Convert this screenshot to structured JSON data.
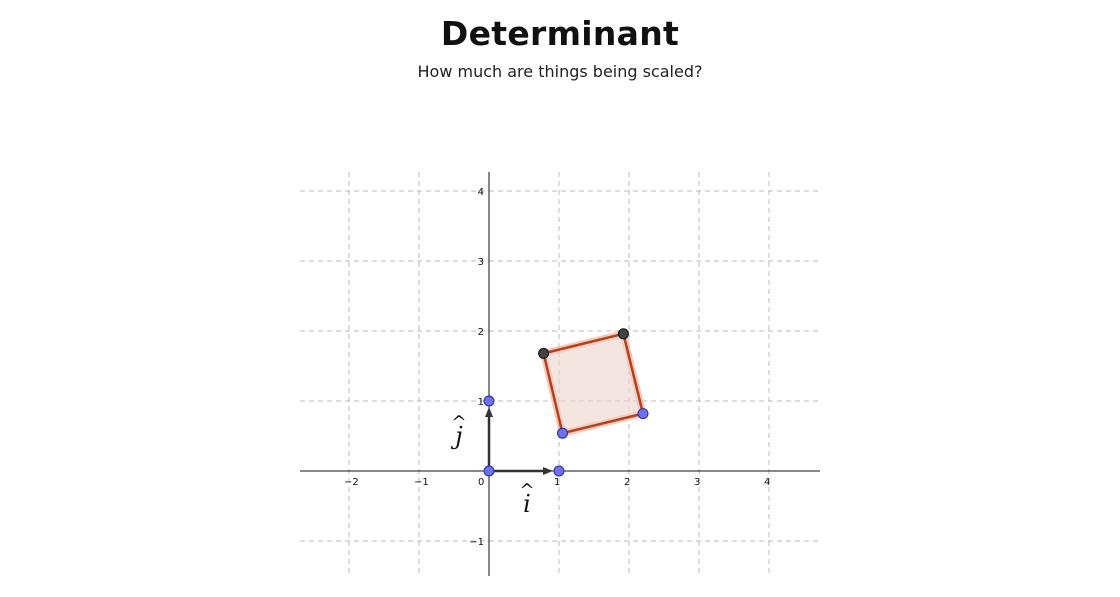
{
  "header": {
    "title": "Determinant",
    "subtitle": "How much are things being scaled?"
  },
  "plane": {
    "x_range": [
      -2.7,
      4.7
    ],
    "y_range": [
      -1.5,
      4.25
    ],
    "x_ticks": [
      -2,
      -1,
      0,
      1,
      2,
      3,
      4
    ],
    "y_ticks": [
      -1,
      1,
      2,
      3,
      4
    ],
    "x_tick_labels": [
      "−2",
      "−1",
      "0",
      "1",
      "2",
      "3",
      "4"
    ],
    "y_tick_labels": [
      "−1",
      "1",
      "2",
      "3",
      "4"
    ],
    "grid": true
  },
  "basis": {
    "i_hat": {
      "label": "i",
      "hat": "^",
      "tip": [
        1,
        0
      ]
    },
    "j_hat": {
      "label": "j",
      "hat": "^",
      "tip": [
        0,
        1
      ]
    },
    "origin": [
      0,
      0
    ]
  },
  "square": {
    "vertices": [
      {
        "x": 1.05,
        "y": 0.54,
        "kind": "blue"
      },
      {
        "x": 2.2,
        "y": 0.82,
        "kind": "blue"
      },
      {
        "x": 1.92,
        "y": 1.96,
        "kind": "dark"
      },
      {
        "x": 0.78,
        "y": 1.68,
        "kind": "dark"
      }
    ]
  },
  "colors": {
    "square_edge": "#b5401a",
    "square_fill": "#ecd3cb",
    "square_glow": "#f0b8a8",
    "blue_point": "#6d72f2",
    "blue_point_edge": "#2a2a99",
    "dark_point": "#444444",
    "vector": "#333333"
  }
}
